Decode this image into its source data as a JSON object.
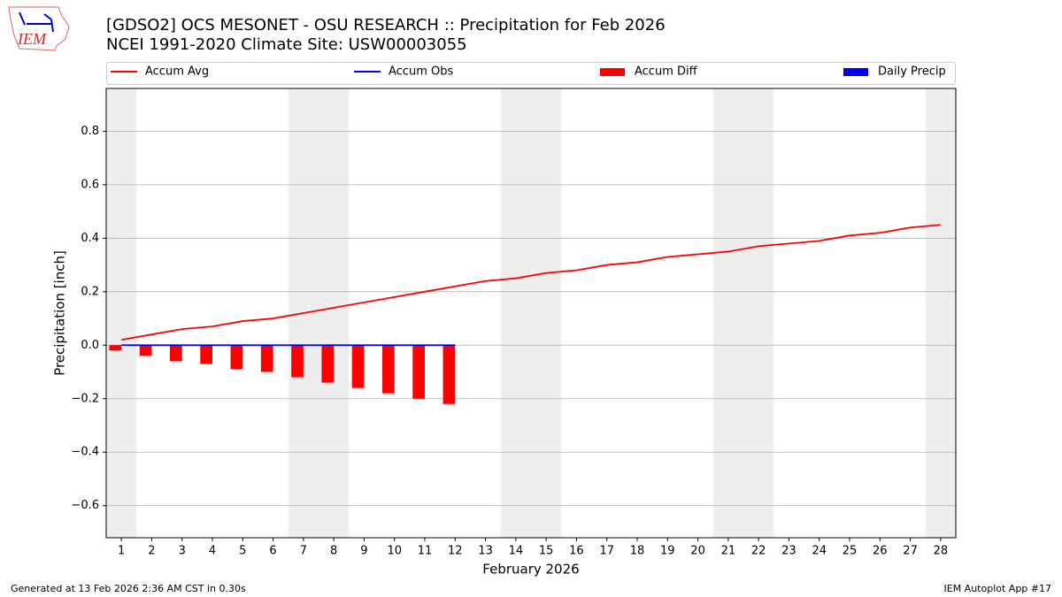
{
  "chart_data": {
    "type": "line",
    "title": "[GDSO2] OCS MESONET - OSU RESEARCH :: Precipitation for Feb 2026",
    "subtitle": "NCEI 1991-2020 Climate Site: USW00003055",
    "y_label": "Precipitation [inch]",
    "x_label": "February 2026",
    "logo_text": "IEM",
    "footer_left": "Generated at 13 Feb 2026 2:36 AM CST in 0.30s",
    "footer_right": "IEM Autoplot App #17",
    "x": [
      1,
      2,
      3,
      4,
      5,
      6,
      7,
      8,
      9,
      10,
      11,
      12,
      13,
      14,
      15,
      16,
      17,
      18,
      19,
      20,
      21,
      22,
      23,
      24,
      25,
      26,
      27,
      28
    ],
    "series": [
      {
        "name": "Accum Avg",
        "type": "line",
        "color": "#ff0000",
        "values": [
          0.02,
          0.04,
          0.06,
          0.07,
          0.09,
          0.1,
          0.12,
          0.14,
          0.16,
          0.18,
          0.2,
          0.22,
          0.24,
          0.25,
          0.27,
          0.28,
          0.3,
          0.31,
          0.33,
          0.34,
          0.35,
          0.37,
          0.38,
          0.39,
          0.41,
          0.42,
          0.44,
          0.45
        ]
      },
      {
        "name": "Accum Obs",
        "type": "line",
        "color": "#0000ff",
        "values": [
          0,
          0,
          0,
          0,
          0,
          0,
          0,
          0,
          0,
          0,
          0,
          0,
          null,
          null,
          null,
          null,
          null,
          null,
          null,
          null,
          null,
          null,
          null,
          null,
          null,
          null,
          null,
          null
        ]
      },
      {
        "name": "Accum Diff",
        "type": "bar",
        "color": "#ff0000",
        "values": [
          -0.02,
          -0.04,
          -0.06,
          -0.07,
          -0.09,
          -0.1,
          -0.12,
          -0.14,
          -0.16,
          -0.18,
          -0.2,
          -0.22,
          null,
          null,
          null,
          null,
          null,
          null,
          null,
          null,
          null,
          null,
          null,
          null,
          null,
          null,
          null,
          null
        ]
      },
      {
        "name": "Daily Precip",
        "type": "bar",
        "color": "#0000ff",
        "values": [
          0,
          0,
          0,
          0,
          0,
          0,
          0,
          0,
          0,
          0,
          0,
          0,
          null,
          null,
          null,
          null,
          null,
          null,
          null,
          null,
          null,
          null,
          null,
          null,
          null,
          null,
          null,
          null
        ]
      }
    ],
    "weekend_days": [
      1,
      7,
      8,
      14,
      15,
      21,
      22,
      28
    ],
    "xlim": [
      0.5,
      28.5
    ],
    "xticks": [
      1,
      2,
      3,
      4,
      5,
      6,
      7,
      8,
      9,
      10,
      11,
      12,
      13,
      14,
      15,
      16,
      17,
      18,
      19,
      20,
      21,
      22,
      23,
      24,
      25,
      26,
      27,
      28
    ],
    "ylim": [
      -0.72,
      0.96
    ],
    "yticks": [
      {
        "value": -0.6,
        "label": "−0.6"
      },
      {
        "value": -0.4,
        "label": "−0.4"
      },
      {
        "value": -0.2,
        "label": "−0.2"
      },
      {
        "value": 0,
        "label": "0.0"
      },
      0.2,
      0.4,
      0.6,
      0.8
    ],
    "grid": true,
    "legend": "top"
  }
}
